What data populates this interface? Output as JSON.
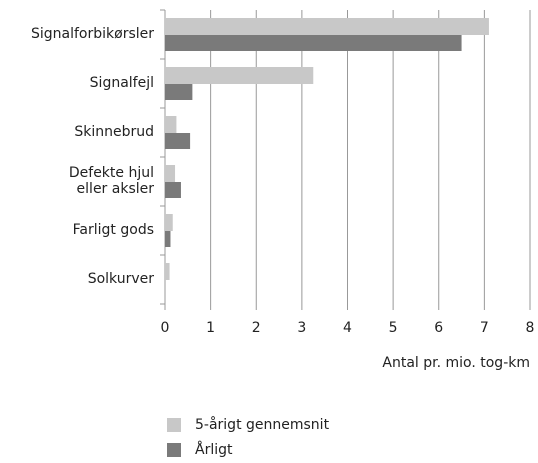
{
  "chart_data": {
    "type": "bar",
    "orientation": "horizontal",
    "categories": [
      "Signalforbikørsler",
      "Signalfejl",
      "Skinnebrud",
      "Defekte hjul\neller aksler",
      "Farligt gods",
      "Solkurver"
    ],
    "series": [
      {
        "name": "5-årigt gennemsnit",
        "color": "#c8c8c8",
        "values": [
          7.1,
          3.25,
          0.25,
          0.22,
          0.17,
          0.1
        ]
      },
      {
        "name": "Årligt",
        "color": "#7a7a7a",
        "values": [
          6.5,
          0.6,
          0.55,
          0.35,
          0.12,
          null
        ]
      }
    ],
    "x_label": "Antal pr. mio. tog-km",
    "xlim": [
      0,
      8
    ],
    "xticks": [
      0,
      1,
      2,
      3,
      4,
      5,
      6,
      7,
      8
    ],
    "grid": true
  }
}
